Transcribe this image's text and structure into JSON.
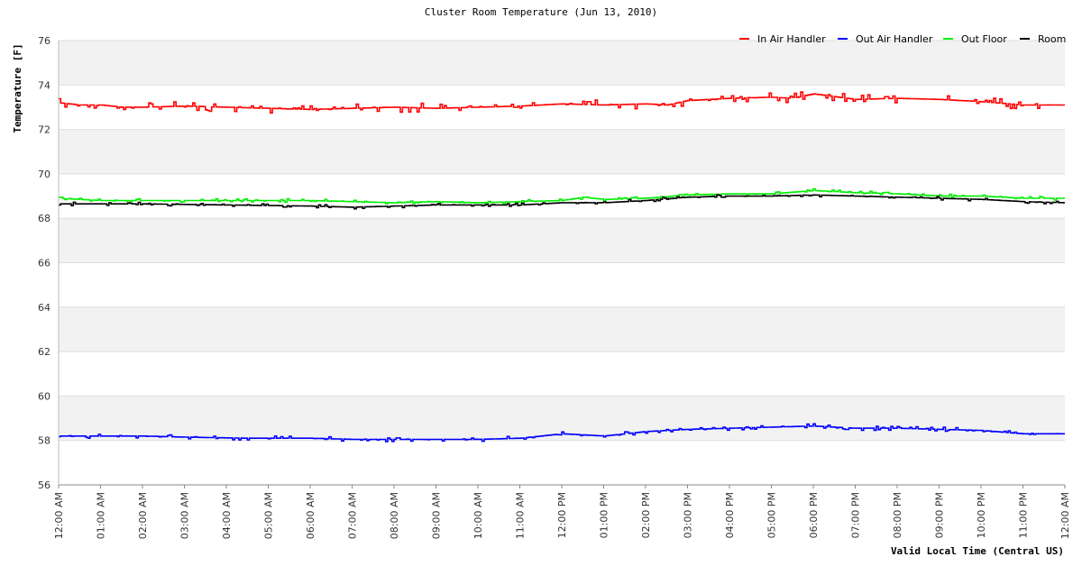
{
  "chart_data": {
    "type": "line",
    "title": "Cluster Room Temperature (Jun 13, 2010)",
    "xlabel": "Valid Local Time (Central US)",
    "ylabel": "Temperature [F]",
    "ylim": [
      56,
      76
    ],
    "xlim": [
      0,
      24
    ],
    "y_ticks": [
      "56",
      "58",
      "60",
      "62",
      "64",
      "66",
      "68",
      "70",
      "72",
      "74",
      "76"
    ],
    "x_tick_labels": [
      "12:00 AM",
      "01:00 AM",
      "02:00 AM",
      "03:00 AM",
      "04:00 AM",
      "05:00 AM",
      "06:00 AM",
      "07:00 AM",
      "08:00 AM",
      "09:00 AM",
      "10:00 AM",
      "11:00 AM",
      "12:00 PM",
      "01:00 PM",
      "02:00 PM",
      "03:00 PM",
      "04:00 PM",
      "05:00 PM",
      "06:00 PM",
      "07:00 PM",
      "08:00 PM",
      "09:00 PM",
      "10:00 PM",
      "11:00 PM",
      "12:00 AM"
    ],
    "x_hours": [
      0,
      1,
      2,
      3,
      4,
      5,
      6,
      7,
      8,
      9,
      10,
      11,
      12,
      13,
      14,
      15,
      16,
      17,
      18,
      19,
      20,
      21,
      22,
      23,
      24
    ],
    "grid": "horizontal alternating bands",
    "legend_position": "top-right",
    "series": [
      {
        "name": "In Air Handler",
        "color": "#ff0000",
        "noise": 0.22,
        "points": [
          [
            0,
            73.2
          ],
          [
            0.5,
            73.1
          ],
          [
            1,
            73.1
          ],
          [
            1.5,
            73.0
          ],
          [
            2,
            73.0
          ],
          [
            3,
            73.05
          ],
          [
            4,
            73.0
          ],
          [
            5,
            72.95
          ],
          [
            6,
            72.9
          ],
          [
            7,
            72.95
          ],
          [
            8,
            73.0
          ],
          [
            9,
            72.95
          ],
          [
            10,
            73.0
          ],
          [
            11,
            73.05
          ],
          [
            11.5,
            73.1
          ],
          [
            12,
            73.15
          ],
          [
            13,
            73.1
          ],
          [
            14,
            73.15
          ],
          [
            14.5,
            73.1
          ],
          [
            15,
            73.3
          ],
          [
            16,
            73.4
          ],
          [
            17,
            73.45
          ],
          [
            17.5,
            73.4
          ],
          [
            18,
            73.6
          ],
          [
            19,
            73.35
          ],
          [
            20,
            73.4
          ],
          [
            21,
            73.35
          ],
          [
            22,
            73.25
          ],
          [
            23,
            73.1
          ],
          [
            24,
            73.1
          ]
        ]
      },
      {
        "name": "Out Air Handler",
        "color": "#0000ff",
        "noise": 0.1,
        "points": [
          [
            0,
            58.2
          ],
          [
            2,
            58.2
          ],
          [
            3,
            58.15
          ],
          [
            4.5,
            58.1
          ],
          [
            6,
            58.1
          ],
          [
            7,
            58.05
          ],
          [
            8,
            58.05
          ],
          [
            9,
            58.05
          ],
          [
            10,
            58.05
          ],
          [
            11,
            58.1
          ],
          [
            11.5,
            58.2
          ],
          [
            12,
            58.3
          ],
          [
            13,
            58.2
          ],
          [
            14,
            58.4
          ],
          [
            15,
            58.5
          ],
          [
            16,
            58.55
          ],
          [
            17,
            58.6
          ],
          [
            18,
            58.65
          ],
          [
            19,
            58.55
          ],
          [
            20,
            58.55
          ],
          [
            21,
            58.5
          ],
          [
            22,
            58.45
          ],
          [
            23,
            58.3
          ],
          [
            24,
            58.3
          ]
        ]
      },
      {
        "name": "Out Floor",
        "color": "#00ee00",
        "noise": 0.08,
        "points": [
          [
            0,
            68.9
          ],
          [
            1,
            68.8
          ],
          [
            2,
            68.8
          ],
          [
            4,
            68.8
          ],
          [
            6,
            68.8
          ],
          [
            7,
            68.75
          ],
          [
            8,
            68.7
          ],
          [
            9,
            68.75
          ],
          [
            10,
            68.7
          ],
          [
            11,
            68.75
          ],
          [
            12,
            68.8
          ],
          [
            12.5,
            68.95
          ],
          [
            13,
            68.85
          ],
          [
            14,
            68.9
          ],
          [
            15,
            69.05
          ],
          [
            16,
            69.1
          ],
          [
            17,
            69.1
          ],
          [
            18,
            69.25
          ],
          [
            19,
            69.15
          ],
          [
            20,
            69.1
          ],
          [
            21,
            69.0
          ],
          [
            22,
            69.0
          ],
          [
            23,
            68.9
          ],
          [
            24,
            68.9
          ]
        ]
      },
      {
        "name": "Room",
        "color": "#000000",
        "noise": 0.08,
        "points": [
          [
            0,
            68.65
          ],
          [
            2,
            68.65
          ],
          [
            4,
            68.6
          ],
          [
            6,
            68.55
          ],
          [
            7,
            68.5
          ],
          [
            8,
            68.55
          ],
          [
            9,
            68.6
          ],
          [
            10,
            68.6
          ],
          [
            11,
            68.6
          ],
          [
            12,
            68.7
          ],
          [
            13,
            68.7
          ],
          [
            14,
            68.8
          ],
          [
            15,
            68.95
          ],
          [
            16,
            69.0
          ],
          [
            17,
            69.0
          ],
          [
            18,
            69.05
          ],
          [
            19,
            69.0
          ],
          [
            20,
            68.95
          ],
          [
            21,
            68.9
          ],
          [
            22,
            68.85
          ],
          [
            23,
            68.75
          ],
          [
            24,
            68.7
          ]
        ]
      }
    ]
  }
}
